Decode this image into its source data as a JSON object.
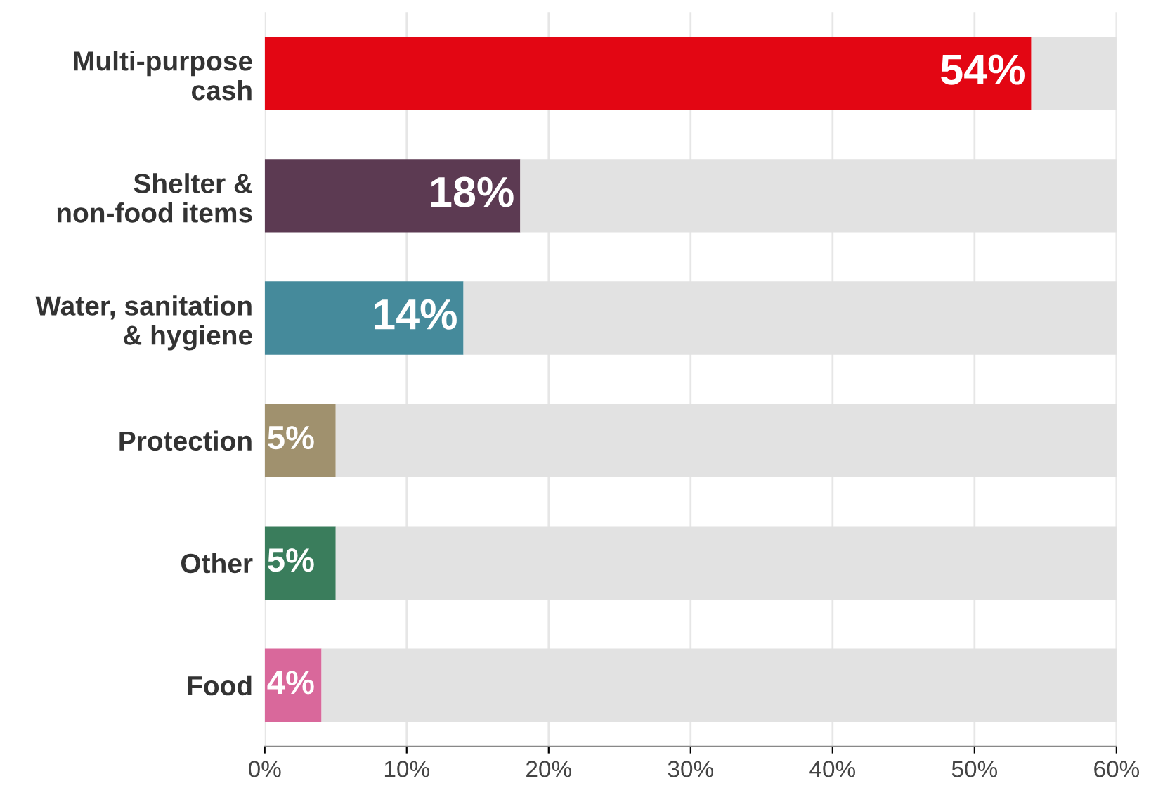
{
  "chart_data": {
    "type": "bar",
    "orientation": "horizontal",
    "stacked": true,
    "categories": [
      "Multi-purpose\ncash",
      "Shelter &\nnon-food items",
      "Water, sanitation\n& hygiene",
      "Protection",
      "Other",
      "Food"
    ],
    "series": [
      {
        "colors": [
          "#e30613",
          "#5c3a52",
          "#458a9b",
          "#a0916e",
          "#3a7d5c",
          "#d9689b"
        ],
        "values": [
          54,
          18,
          14,
          5,
          5,
          4
        ],
        "value_labels": [
          "54%",
          "18%",
          "14%",
          "5%",
          "5%",
          "4%"
        ]
      },
      {
        "color": "#e2e2e2",
        "values": [
          6,
          42,
          46,
          55,
          55,
          56
        ]
      }
    ],
    "xlim": [
      0,
      60
    ],
    "xticks": [
      {
        "value": 0,
        "label": "0%"
      },
      {
        "value": 10,
        "label": "10%"
      },
      {
        "value": 20,
        "label": "20%"
      },
      {
        "value": 30,
        "label": "30%"
      },
      {
        "value": 40,
        "label": "40%"
      },
      {
        "value": 50,
        "label": "50%"
      },
      {
        "value": 60,
        "label": "60%"
      }
    ],
    "grid": "x"
  }
}
